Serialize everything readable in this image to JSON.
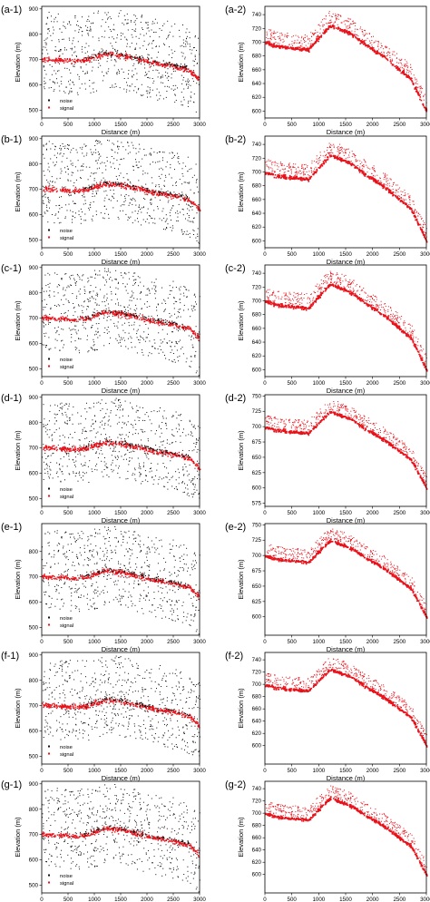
{
  "colors": {
    "noise": "#111111",
    "signal": "#e8121a",
    "axis": "#000000"
  },
  "legend": {
    "noise": "noise",
    "signal": "signal"
  },
  "chart_data": [
    {
      "panel_label": "(a-1)",
      "type": "scatter",
      "xlabel": "Distance (m)",
      "ylabel": "Elevation (m)",
      "xlim": [
        0,
        3000
      ],
      "ylim": [
        470,
        910
      ],
      "xticks": [
        0,
        500,
        1000,
        1500,
        2000,
        2500,
        3000
      ],
      "yticks": [
        500,
        600,
        700,
        800,
        900
      ],
      "legend": [
        "noise",
        "signal"
      ],
      "legend_loc": "lower-left",
      "series": [
        {
          "name": "signal",
          "x": [
            0,
            300,
            700,
            850,
            1200,
            1500,
            1800,
            2100,
            2500,
            2800,
            3000
          ],
          "y": [
            704,
            700,
            697,
            700,
            725,
            718,
            706,
            690,
            676,
            660,
            620
          ]
        }
      ]
    },
    {
      "panel_label": "(a-2)",
      "type": "scatter",
      "xlabel": "Distance (m)",
      "ylabel": "Elevation (m)",
      "xlim": [
        0,
        3000
      ],
      "ylim": [
        590,
        752
      ],
      "xticks": [
        0,
        500,
        1000,
        1500,
        2000,
        2500,
        3000
      ],
      "yticks": [
        600,
        620,
        640,
        660,
        680,
        700,
        720,
        740
      ],
      "legend": [],
      "series": [
        {
          "x": [
            0,
            200,
            400,
            800,
            1200,
            1550,
            1900,
            2200,
            2500,
            2700,
            3000
          ],
          "y": [
            700,
            695,
            693,
            690,
            725,
            715,
            695,
            680,
            660,
            648,
            600
          ]
        }
      ]
    },
    {
      "panel_label": "(b-1)",
      "type": "scatter",
      "xlabel": "Distance (m)",
      "ylabel": "Elevation (m)",
      "xlim": [
        0,
        3000
      ],
      "ylim": [
        470,
        910
      ],
      "xticks": [
        0,
        500,
        1000,
        1500,
        2000,
        2500,
        3000
      ],
      "yticks": [
        500,
        600,
        700,
        800,
        900
      ],
      "legend": [
        "noise",
        "signal"
      ],
      "legend_loc": "lower-left",
      "series": [
        {
          "name": "signal",
          "x": [
            0,
            300,
            700,
            850,
            1200,
            1500,
            1800,
            2100,
            2500,
            2800,
            3000
          ],
          "y": [
            704,
            700,
            697,
            700,
            725,
            718,
            706,
            690,
            676,
            660,
            620
          ]
        }
      ]
    },
    {
      "panel_label": "(b-2)",
      "type": "scatter",
      "xlabel": "Distance (m)",
      "ylabel": "Elevation (m)",
      "xlim": [
        0,
        3000
      ],
      "ylim": [
        590,
        752
      ],
      "xticks": [
        0,
        500,
        1000,
        1500,
        2000,
        2500,
        3000
      ],
      "yticks": [
        600,
        620,
        640,
        660,
        680,
        700,
        720,
        740
      ],
      "legend": [],
      "series": [
        {
          "x": [
            0,
            200,
            400,
            800,
            1200,
            1550,
            1900,
            2200,
            2500,
            2700,
            3000
          ],
          "y": [
            700,
            695,
            693,
            690,
            725,
            715,
            695,
            680,
            660,
            648,
            600
          ]
        }
      ]
    },
    {
      "panel_label": "(c-1)",
      "type": "scatter",
      "xlabel": "Distance (m)",
      "ylabel": "Elevation (m)",
      "xlim": [
        0,
        3000
      ],
      "ylim": [
        470,
        910
      ],
      "xticks": [
        0,
        500,
        1000,
        1500,
        2000,
        2500,
        3000
      ],
      "yticks": [
        500,
        600,
        700,
        800,
        900
      ],
      "legend": [
        "noise",
        "signal"
      ],
      "legend_loc": "lower-left",
      "series": [
        {
          "name": "signal",
          "x": [
            0,
            300,
            700,
            850,
            1200,
            1500,
            1800,
            2100,
            2500,
            2800,
            3000
          ],
          "y": [
            704,
            700,
            697,
            700,
            725,
            718,
            706,
            690,
            676,
            660,
            620
          ]
        }
      ]
    },
    {
      "panel_label": "(c-2)",
      "type": "scatter",
      "xlabel": "Distance (m)",
      "ylabel": "Elevation (m)",
      "xlim": [
        0,
        3000
      ],
      "ylim": [
        590,
        752
      ],
      "xticks": [
        0,
        500,
        1000,
        1500,
        2000,
        2500,
        3000
      ],
      "yticks": [
        600,
        620,
        640,
        660,
        680,
        700,
        720,
        740
      ],
      "legend": [],
      "series": [
        {
          "x": [
            0,
            200,
            400,
            800,
            1200,
            1550,
            1900,
            2200,
            2500,
            2700,
            3000
          ],
          "y": [
            700,
            695,
            693,
            690,
            725,
            715,
            695,
            680,
            660,
            648,
            600
          ]
        }
      ]
    },
    {
      "panel_label": "(d-1)",
      "type": "scatter",
      "xlabel": "Distance (m)",
      "ylabel": "Elevation (m)",
      "xlim": [
        0,
        3000
      ],
      "ylim": [
        470,
        910
      ],
      "xticks": [
        0,
        500,
        1000,
        1500,
        2000,
        2500,
        3000
      ],
      "yticks": [
        500,
        600,
        700,
        800,
        900
      ],
      "legend": [
        "noise",
        "signal"
      ],
      "legend_loc": "lower-left",
      "series": [
        {
          "name": "signal",
          "x": [
            0,
            300,
            700,
            850,
            1200,
            1500,
            1800,
            2100,
            2500,
            2800,
            3000
          ],
          "y": [
            704,
            700,
            697,
            700,
            725,
            718,
            706,
            690,
            676,
            660,
            620
          ]
        }
      ]
    },
    {
      "panel_label": "(d-2)",
      "type": "scatter",
      "xlabel": "Distance (m)",
      "ylabel": "Elevation (m)",
      "xlim": [
        0,
        3000
      ],
      "ylim": [
        570,
        752
      ],
      "xticks": [
        0,
        500,
        1000,
        1500,
        2000,
        2500,
        3000
      ],
      "yticks": [
        575,
        600,
        625,
        650,
        675,
        700,
        725,
        750
      ],
      "legend": [],
      "series": [
        {
          "x": [
            0,
            200,
            400,
            800,
            1200,
            1550,
            1900,
            2200,
            2500,
            2700,
            3000
          ],
          "y": [
            700,
            695,
            693,
            690,
            725,
            715,
            695,
            680,
            660,
            648,
            600
          ]
        }
      ]
    },
    {
      "panel_label": "(e-1)",
      "type": "scatter",
      "xlabel": "Distance (m)",
      "ylabel": "Elevation (m)",
      "xlim": [
        0,
        3000
      ],
      "ylim": [
        470,
        910
      ],
      "xticks": [
        0,
        500,
        1000,
        1500,
        2000,
        2500,
        3000
      ],
      "yticks": [
        500,
        600,
        700,
        800
      ],
      "legend": [
        "noise",
        "signal"
      ],
      "legend_loc": "lower-left",
      "series": [
        {
          "name": "signal",
          "x": [
            0,
            300,
            700,
            850,
            1200,
            1500,
            1800,
            2100,
            2500,
            2800,
            3000
          ],
          "y": [
            704,
            700,
            697,
            700,
            725,
            718,
            706,
            690,
            676,
            660,
            620
          ]
        }
      ]
    },
    {
      "panel_label": "(e-2)",
      "type": "scatter",
      "xlabel": "Distance (m)",
      "ylabel": "Elevation (m)",
      "xlim": [
        0,
        3000
      ],
      "ylim": [
        570,
        752
      ],
      "xticks": [
        0,
        500,
        1000,
        1500,
        2000,
        2500,
        3000
      ],
      "yticks": [
        600,
        625,
        650,
        675,
        700,
        725,
        750
      ],
      "legend": [],
      "series": [
        {
          "x": [
            0,
            200,
            400,
            800,
            1200,
            1550,
            1900,
            2200,
            2500,
            2700,
            3000
          ],
          "y": [
            700,
            695,
            693,
            690,
            725,
            715,
            695,
            680,
            660,
            648,
            600
          ]
        }
      ]
    },
    {
      "panel_label": "(f-1)",
      "type": "scatter",
      "xlabel": "Distance (m)",
      "ylabel": "Elevation (m)",
      "xlim": [
        0,
        3000
      ],
      "ylim": [
        470,
        910
      ],
      "xticks": [
        0,
        500,
        1000,
        1500,
        2000,
        2500,
        3000
      ],
      "yticks": [
        500,
        600,
        700,
        800,
        900
      ],
      "legend": [
        "noise",
        "signal"
      ],
      "legend_loc": "lower-left",
      "series": [
        {
          "name": "signal",
          "x": [
            0,
            300,
            700,
            850,
            1200,
            1500,
            1800,
            2100,
            2500,
            2800,
            3000
          ],
          "y": [
            704,
            700,
            697,
            700,
            725,
            718,
            706,
            690,
            676,
            660,
            620
          ]
        }
      ]
    },
    {
      "panel_label": "(f-2)",
      "type": "scatter",
      "xlabel": "Distance (m)",
      "ylabel": "Elevation (m)",
      "xlim": [
        0,
        3000
      ],
      "ylim": [
        570,
        752
      ],
      "xticks": [
        0,
        500,
        1000,
        1500,
        2000,
        2500,
        3000
      ],
      "yticks": [
        600,
        620,
        640,
        660,
        680,
        700,
        720,
        740
      ],
      "legend": [],
      "series": [
        {
          "x": [
            0,
            200,
            400,
            800,
            1200,
            1550,
            1900,
            2200,
            2500,
            2700,
            3000
          ],
          "y": [
            700,
            695,
            693,
            690,
            725,
            715,
            695,
            680,
            660,
            648,
            600
          ]
        }
      ]
    },
    {
      "panel_label": "(g-1)",
      "type": "scatter",
      "xlabel": "Distance (m)",
      "ylabel": "Elevation (m)",
      "xlim": [
        0,
        3000
      ],
      "ylim": [
        470,
        910
      ],
      "xticks": [
        0,
        500,
        1000,
        1500,
        2000,
        2500,
        3000
      ],
      "yticks": [
        500,
        600,
        700,
        800,
        900
      ],
      "legend": [
        "noise",
        "signal"
      ],
      "legend_loc": "lower-left",
      "series": [
        {
          "name": "signal",
          "x": [
            0,
            300,
            700,
            850,
            1200,
            1500,
            1800,
            2100,
            2500,
            2800,
            3000
          ],
          "y": [
            704,
            700,
            697,
            700,
            725,
            718,
            706,
            690,
            676,
            660,
            620
          ]
        }
      ]
    },
    {
      "panel_label": "(g-2)",
      "type": "scatter",
      "xlabel": "Distance (m)",
      "ylabel": "Elevation (m)",
      "xlim": [
        0,
        3000
      ],
      "ylim": [
        570,
        752
      ],
      "xticks": [
        0,
        500,
        1000,
        1500,
        2000,
        2500,
        3000
      ],
      "yticks": [
        600,
        620,
        640,
        660,
        680,
        700,
        720,
        740
      ],
      "legend": [],
      "series": [
        {
          "x": [
            0,
            200,
            400,
            800,
            1200,
            1550,
            1900,
            2200,
            2500,
            2700,
            3000
          ],
          "y": [
            700,
            695,
            693,
            690,
            725,
            715,
            695,
            680,
            660,
            648,
            600
          ]
        }
      ]
    }
  ]
}
